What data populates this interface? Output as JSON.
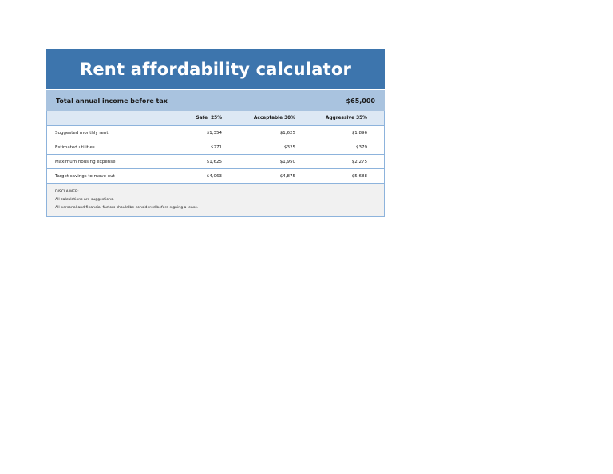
{
  "title": "Rent affordability calculator",
  "income": {
    "label": "Total annual income before tax",
    "value": "$65,000"
  },
  "table": {
    "columns": [
      "",
      "Safe  25%",
      "Acceptable 30%",
      "Aggressive 35%"
    ],
    "rows": [
      {
        "label": "Suggested monthly rent",
        "values": [
          "$1,354",
          "$1,625",
          "$1,896"
        ]
      },
      {
        "label": "Estimated utilities",
        "values": [
          "$271",
          "$325",
          "$379"
        ]
      },
      {
        "label": "Maximum housing expense",
        "values": [
          "$1,625",
          "$1,950",
          "$2,275"
        ]
      },
      {
        "label": "Target savings to move out",
        "values": [
          "$4,063",
          "$4,875",
          "$5,688"
        ]
      }
    ]
  },
  "disclaimer": {
    "heading": "DISCLAIMER:",
    "lines": [
      "All calculations are suggestions.",
      "All personal and financial factors should be considered before signing a lease."
    ]
  },
  "colors": {
    "banner": "#3d75ad",
    "income_bar": "#a9c3df",
    "header_row": "#dde8f4",
    "border": "#8db3dc",
    "disclaimer_bg": "#f1f1f1"
  }
}
